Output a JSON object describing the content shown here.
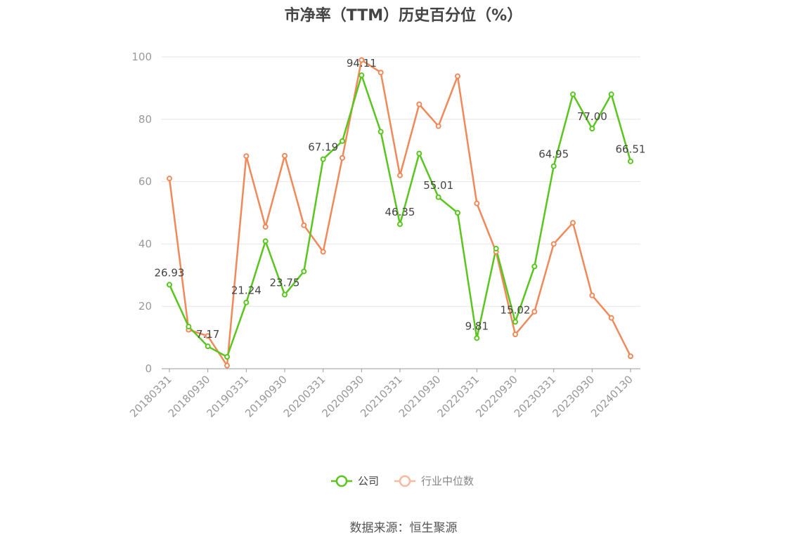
{
  "title": "市净率（TTM）历史百分位（%）",
  "source": "数据来源：恒生聚源",
  "colors": {
    "company": "#5ac51f",
    "industry": "#f0895a",
    "grid": "#e6e6e6",
    "axis": "#999999"
  },
  "chart_data": {
    "type": "line",
    "title": "市净率（TTM）历史百分位（%）",
    "ylim": [
      0,
      100
    ],
    "yticks": [
      0,
      20,
      40,
      60,
      80,
      100
    ],
    "grid": true,
    "legend_position": "bottom",
    "x_tick_labels": [
      "20180331",
      "20180930",
      "20190331",
      "20190930",
      "20200331",
      "20200930",
      "20210331",
      "20210930",
      "20220331",
      "20220930",
      "20230331",
      "20230930",
      "20240130"
    ],
    "x": [
      "20180331",
      "20180630",
      "20180930",
      "20181231",
      "20190331",
      "20190630",
      "20190930",
      "20191231",
      "20200331",
      "20200630",
      "20200930",
      "20201231",
      "20210331",
      "20210630",
      "20210930",
      "20211231",
      "20220331",
      "20220630",
      "20220930",
      "20221231",
      "20230331",
      "20230630",
      "20230930",
      "20231231",
      "20240130"
    ],
    "series": [
      {
        "name": "公司",
        "color": "#5ac51f",
        "values": [
          26.93,
          13.5,
          7.17,
          3.8,
          21.24,
          40.9,
          23.75,
          31.2,
          67.19,
          73.0,
          94.11,
          76.0,
          46.35,
          69.0,
          55.01,
          50.0,
          9.81,
          38.5,
          15.02,
          32.8,
          64.95,
          88.0,
          77.0,
          88.0,
          66.51
        ],
        "labels": [
          "26.93",
          null,
          "7.17",
          null,
          "21.24",
          null,
          "23.75",
          null,
          "67.19",
          null,
          "94.11",
          null,
          "46.35",
          null,
          "55.01",
          null,
          "9.81",
          null,
          "15.02",
          null,
          "64.95",
          null,
          "77.00",
          null,
          "66.51"
        ]
      },
      {
        "name": "行业中位数",
        "color": "#f0895a",
        "values": [
          61.0,
          12.5,
          10.5,
          1.0,
          68.2,
          45.5,
          68.3,
          46.0,
          37.5,
          67.6,
          99.0,
          95.0,
          62.0,
          84.8,
          77.8,
          93.8,
          53.0,
          37.5,
          11.0,
          18.3,
          40.0,
          46.8,
          23.5,
          16.3,
          4.0
        ]
      }
    ]
  }
}
